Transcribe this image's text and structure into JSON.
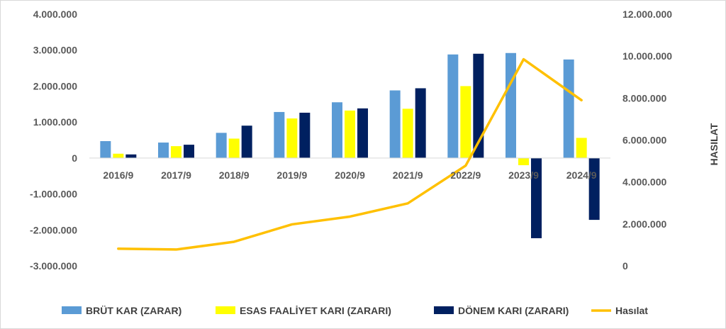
{
  "chart_data": {
    "type": "bar",
    "categories": [
      "2016/9",
      "2017/9",
      "2018/9",
      "2019/9",
      "2020/9",
      "2021/9",
      "2022/9",
      "2023/9",
      "2024/9"
    ],
    "series": [
      {
        "name": "BRÜT KAR (ZARAR)",
        "kind": "bar",
        "axis": "left",
        "color": "#5b9bd5",
        "values": [
          470000,
          430000,
          700000,
          1280000,
          1550000,
          1880000,
          2880000,
          2920000,
          2740000
        ]
      },
      {
        "name": "ESAS FAALİYET KARI (ZARARI)",
        "kind": "bar",
        "axis": "left",
        "color": "#ffff00",
        "values": [
          120000,
          330000,
          540000,
          1100000,
          1320000,
          1370000,
          2000000,
          -200000,
          560000
        ]
      },
      {
        "name": "DÖNEM KARI (ZARARI)",
        "kind": "bar",
        "axis": "left",
        "color": "#002060",
        "values": [
          100000,
          370000,
          900000,
          1260000,
          1380000,
          1940000,
          2900000,
          -2230000,
          -1720000
        ]
      },
      {
        "name": "Hasılat",
        "kind": "line",
        "axis": "right",
        "color": "#ffc000",
        "values": [
          820000,
          780000,
          1150000,
          1980000,
          2350000,
          2980000,
          4780000,
          9850000,
          7900000
        ]
      }
    ],
    "y_left": {
      "min": -3000000,
      "max": 4000000,
      "step": 1000000,
      "ticks": [
        "-3.000.000",
        "-2.000.000",
        "-1.000.000",
        "0",
        "1.000.000",
        "2.000.000",
        "3.000.000",
        "4.000.000"
      ]
    },
    "y_right": {
      "min": 0,
      "max": 12000000,
      "step": 2000000,
      "label": "HASILAT",
      "ticks": [
        "0",
        "2.000.000",
        "4.000.000",
        "6.000.000",
        "8.000.000",
        "10.000.000",
        "12.000.000"
      ]
    },
    "grid": false,
    "legend_position": "bottom"
  }
}
